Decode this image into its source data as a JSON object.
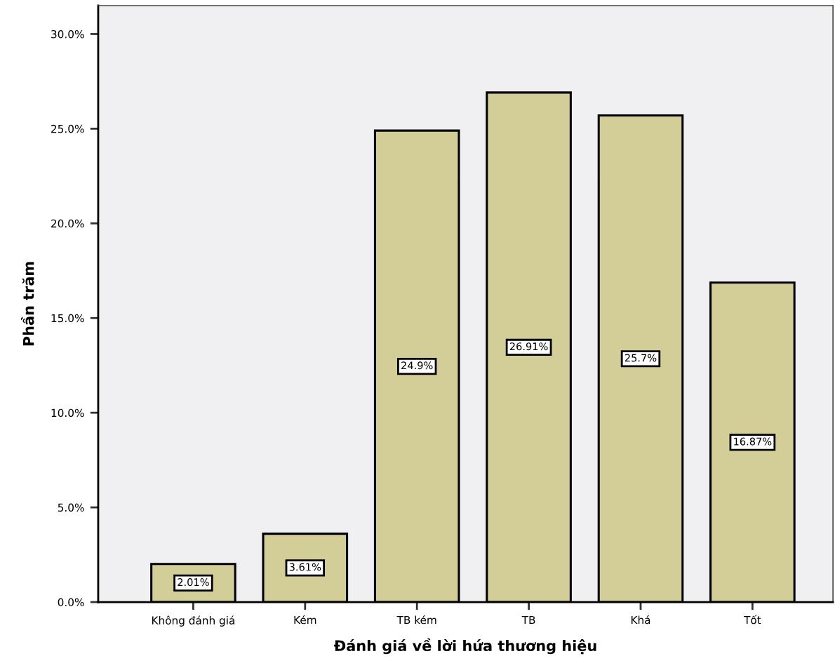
{
  "chart_data": {
    "type": "bar",
    "xlabel": "Đánh giá về lời hứa thương hiệu",
    "ylabel": "Phần trăm",
    "categories": [
      "Không đánh giá",
      "Kém",
      "TB kém",
      "TB",
      "Khá",
      "Tốt"
    ],
    "values": [
      2.01,
      3.61,
      24.9,
      26.91,
      25.7,
      16.87
    ],
    "value_labels": [
      "2.01%",
      "3.61%",
      "24.9%",
      "26.91%",
      "25.7%",
      "16.87%"
    ],
    "color": "#d3ce98",
    "ylim": [
      0,
      31.5
    ],
    "yticks": [
      {
        "value": 0,
        "label": "0.0%"
      },
      {
        "value": 5,
        "label": "5.0%"
      },
      {
        "value": 10,
        "label": "10.0%"
      },
      {
        "value": 15,
        "label": "15.0%"
      },
      {
        "value": 20,
        "label": "20.0%"
      },
      {
        "value": 25,
        "label": "25.0%"
      },
      {
        "value": 30,
        "label": "30.0%"
      }
    ],
    "grid": false,
    "legend": false
  }
}
